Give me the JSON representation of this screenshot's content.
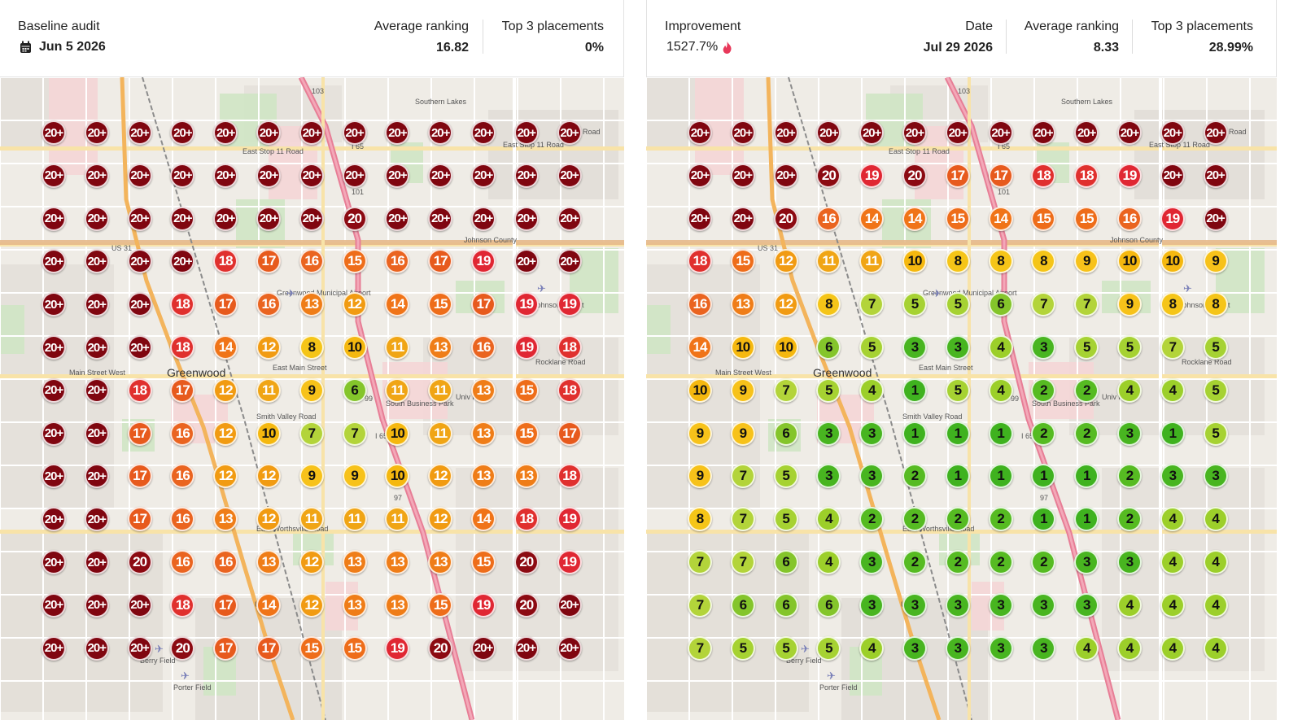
{
  "left": {
    "title": "Baseline audit",
    "date": "Jun 5 2026",
    "stats": [
      {
        "label": "Average ranking",
        "value": "16.82"
      },
      {
        "label": "Top 3 placements",
        "value": "0%"
      }
    ],
    "grid": [
      [
        "20+",
        "20+",
        "20+",
        "20+",
        "20+",
        "20+",
        "20+",
        "20+",
        "20+",
        "20+",
        "20+",
        "20+",
        "20+"
      ],
      [
        "20+",
        "20+",
        "20+",
        "20+",
        "20+",
        "20+",
        "20+",
        "20+",
        "20+",
        "20+",
        "20+",
        "20+",
        "20+"
      ],
      [
        "20+",
        "20+",
        "20+",
        "20+",
        "20+",
        "20+",
        "20+",
        "20",
        "20+",
        "20+",
        "20+",
        "20+",
        "20+"
      ],
      [
        "20+",
        "20+",
        "20+",
        "20+",
        "18",
        "17",
        "16",
        "15",
        "16",
        "17",
        "19",
        "20+",
        "20+"
      ],
      [
        "20+",
        "20+",
        "20+",
        "18",
        "17",
        "16",
        "13",
        "12",
        "14",
        "15",
        "17",
        "19",
        "19"
      ],
      [
        "20+",
        "20+",
        "20+",
        "18",
        "14",
        "12",
        "8",
        "10",
        "11",
        "13",
        "16",
        "19",
        "18"
      ],
      [
        "20+",
        "20+",
        "18",
        "17",
        "12",
        "11",
        "9",
        "6",
        "11",
        "11",
        "13",
        "15",
        "18"
      ],
      [
        "20+",
        "20+",
        "17",
        "16",
        "12",
        "10",
        "7",
        "7",
        "10",
        "11",
        "13",
        "15",
        "17"
      ],
      [
        "20+",
        "20+",
        "17",
        "16",
        "12",
        "12",
        "9",
        "9",
        "10",
        "12",
        "13",
        "13",
        "18"
      ],
      [
        "20+",
        "20+",
        "17",
        "16",
        "13",
        "12",
        "11",
        "11",
        "11",
        "12",
        "14",
        "18",
        "19"
      ],
      [
        "20+",
        "20+",
        "20",
        "16",
        "16",
        "13",
        "12",
        "13",
        "13",
        "13",
        "15",
        "20",
        "19"
      ],
      [
        "20+",
        "20+",
        "20+",
        "18",
        "17",
        "14",
        "12",
        "13",
        "13",
        "15",
        "19",
        "20",
        "20+"
      ],
      [
        "20+",
        "20+",
        "20+",
        "20",
        "17",
        "17",
        "15",
        "15",
        "19",
        "20",
        "20+",
        "20+",
        "20+"
      ]
    ]
  },
  "right": {
    "title": "Improvement",
    "improvement": "1527.7%",
    "stats": [
      {
        "label": "Date",
        "value": "Jul 29 2026"
      },
      {
        "label": "Average ranking",
        "value": "8.33"
      },
      {
        "label": "Top 3 placements",
        "value": "28.99%"
      }
    ],
    "grid": [
      [
        "20+",
        "20+",
        "20+",
        "20+",
        "20+",
        "20+",
        "20+",
        "20+",
        "20+",
        "20+",
        "20+",
        "20+",
        "20+"
      ],
      [
        "20+",
        "20+",
        "20+",
        "20",
        "19",
        "20",
        "17",
        "17",
        "18",
        "18",
        "19",
        "20+",
        "20+"
      ],
      [
        "20+",
        "20+",
        "20",
        "16",
        "14",
        "14",
        "15",
        "14",
        "15",
        "15",
        "16",
        "19",
        "20+"
      ],
      [
        "18",
        "15",
        "12",
        "11",
        "11",
        "10",
        "8",
        "8",
        "8",
        "9",
        "10",
        "10",
        "9"
      ],
      [
        "16",
        "13",
        "12",
        "8",
        "7",
        "5",
        "5",
        "6",
        "7",
        "7",
        "9",
        "8",
        "8"
      ],
      [
        "14",
        "10",
        "10",
        "6",
        "5",
        "3",
        "3",
        "4",
        "3",
        "5",
        "5",
        "7",
        "5"
      ],
      [
        "10",
        "9",
        "7",
        "5",
        "4",
        "1",
        "5",
        "4",
        "2",
        "2",
        "4",
        "4",
        "5"
      ],
      [
        "9",
        "9",
        "6",
        "3",
        "3",
        "1",
        "1",
        "1",
        "2",
        "2",
        "3",
        "1",
        "5"
      ],
      [
        "9",
        "7",
        "5",
        "3",
        "3",
        "2",
        "1",
        "1",
        "1",
        "1",
        "2",
        "3",
        "3"
      ],
      [
        "8",
        "7",
        "5",
        "4",
        "2",
        "2",
        "2",
        "2",
        "1",
        "1",
        "2",
        "4",
        "4"
      ],
      [
        "7",
        "7",
        "6",
        "4",
        "3",
        "2",
        "2",
        "2",
        "2",
        "3",
        "3",
        "4",
        "4"
      ],
      [
        "7",
        "6",
        "6",
        "6",
        "3",
        "3",
        "3",
        "3",
        "3",
        "3",
        "4",
        "4",
        "4"
      ],
      [
        "7",
        "5",
        "5",
        "5",
        "4",
        "3",
        "3",
        "3",
        "3",
        "4",
        "4",
        "4",
        "4"
      ]
    ]
  },
  "map_labels": {
    "greenwood": "Greenwood",
    "main_street_west": "Main Street West",
    "east_main_street": "East Main Street",
    "smith_valley_road": "Smith Valley Road",
    "east_stop_11_road": "East Stop 11 Road",
    "east_stop_11_road_2": "East Stop 11 Road",
    "east_worthsville_road": "East Worthsville Road",
    "rocklane_road": "Rocklane Road",
    "us31_top": "US 31",
    "us31_bottom": "US 31",
    "i65_top": "I 65",
    "i65_mid": "I 65",
    "route_101": "101",
    "route_97": "97",
    "route_99": "99",
    "route_103": "103",
    "southern_lakes": "Southern Lakes",
    "johnson_county": "Johnson County",
    "greenwood_airport": "Greenwood Municipal Airport",
    "johnson_airport": "Johnson Airport",
    "berry_field": "Berry Field",
    "porter_field": "Porter Field",
    "north_meridian": "North Meridian Street",
    "madison": "Madison",
    "shelbyville_road": "Shelbyville Road",
    "south_franklin_road": "South Franklin Road",
    "road": "Road",
    "south_business_park": "South Business Park",
    "univ_park": "Univ Park"
  },
  "colors": {
    "rank_1": "#3fb21f",
    "rank_2": "#56bb22",
    "rank_3": "#48b520",
    "rank_4": "#9ccf2a",
    "rank_5": "#a6d232",
    "rank_6": "#84c52b",
    "rank_7": "#b3d43a",
    "rank_8": "#f5c518",
    "rank_9": "#f7c21a",
    "rank_10": "#f5b80f",
    "rank_11": "#f0a515",
    "rank_12": "#f19b12",
    "rank_13": "#ef7d18",
    "rank_14": "#f07418",
    "rank_15": "#ee6d1a",
    "rank_16": "#ea6420",
    "rank_17": "#e75a1d",
    "rank_18": "#e0302e",
    "rank_19": "#e02733",
    "rank_20": "#8c0a12",
    "rank_20_plus": "#800610",
    "flame": "#e8385a"
  }
}
